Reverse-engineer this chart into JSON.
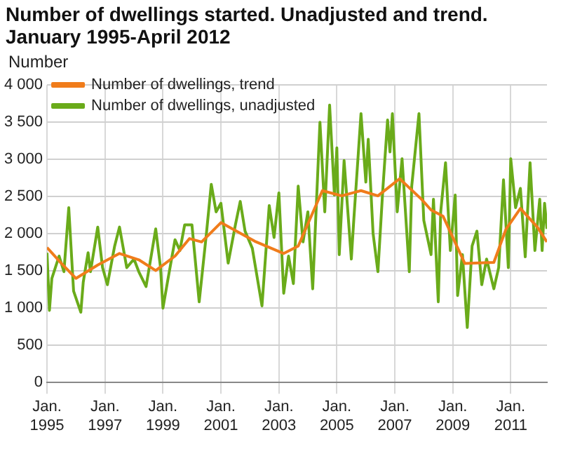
{
  "chart_data": {
    "type": "line",
    "title": "Number of dwellings started. Unadjusted and trend. January 1995-April 2012",
    "ylabel": "Number",
    "xlim": [
      "1995-01",
      "2012-04"
    ],
    "xticks": [
      {
        "value": "1995-01",
        "label": "Jan. 1995"
      },
      {
        "value": "1997-01",
        "label": "Jan. 1997"
      },
      {
        "value": "1999-01",
        "label": "Jan. 1999"
      },
      {
        "value": "2001-01",
        "label": "Jan. 2001"
      },
      {
        "value": "2003-01",
        "label": "Jan. 2003"
      },
      {
        "value": "2005-01",
        "label": "Jan. 2005"
      },
      {
        "value": "2007-01",
        "label": "Jan. 2007"
      },
      {
        "value": "2009-01",
        "label": "Jan. 2009"
      },
      {
        "value": "2011-01",
        "label": "Jan. 2011"
      }
    ],
    "ylim": [
      0,
      4000
    ],
    "yticks": [
      0,
      500,
      {
        "value": 1000,
        "label": "1 000"
      },
      {
        "value": 1500,
        "label": "1 500"
      },
      {
        "value": 2000,
        "label": "2 000"
      },
      {
        "value": 2500,
        "label": "2 500"
      },
      {
        "value": 3000,
        "label": "3 000"
      },
      {
        "value": 3500,
        "label": "3 500"
      },
      {
        "value": 4000,
        "label": "4 000"
      }
    ],
    "grid": true,
    "legend": "top left",
    "marker": "none",
    "line_style": "solid",
    "series": [
      {
        "name": "Number of dwellings, trend",
        "color": "#f07c1b",
        "x": [
          "1995-01",
          "1995-07",
          "1996-01",
          "1996-10",
          "1997-07",
          "1998-03",
          "1998-10",
          "1999-06",
          "1999-12",
          "2000-05",
          "2001-01",
          "2002-03",
          "2003-03",
          "2003-09",
          "2004-07",
          "2005-03",
          "2005-11",
          "2006-06",
          "2007-03",
          "2007-12",
          "2008-04",
          "2008-09",
          "2009-06",
          "2010-06",
          "2010-11",
          "2011-05",
          "2011-12",
          "2012-04"
        ],
        "values": [
          1815,
          1600,
          1400,
          1580,
          1735,
          1650,
          1505,
          1700,
          1935,
          1890,
          2150,
          1900,
          1735,
          1835,
          2580,
          2510,
          2580,
          2510,
          2740,
          2465,
          2320,
          2235,
          1600,
          1615,
          2060,
          2340,
          2090,
          1890
        ]
      },
      {
        "name": "Number of dwellings, unadjusted",
        "color": "#6aab1a",
        "x": [
          "1995-01",
          "1995-02",
          "1995-03",
          "1995-06",
          "1995-08",
          "1995-10",
          "1995-12",
          "1996-03",
          "1996-04",
          "1996-06",
          "1996-07",
          "1996-10",
          "1996-12",
          "1997-02",
          "1997-05",
          "1997-07",
          "1997-10",
          "1998-01",
          "1998-03",
          "1998-06",
          "1998-10",
          "1998-12",
          "1999-01",
          "1999-03",
          "1999-06",
          "1999-08",
          "1999-10",
          "2000-01",
          "2000-04",
          "2000-07",
          "2000-09",
          "2000-11",
          "2001-01",
          "2001-04",
          "2001-07",
          "2001-09",
          "2001-11",
          "2002-02",
          "2002-06",
          "2002-09",
          "2002-11",
          "2003-01",
          "2003-03",
          "2003-05",
          "2003-07",
          "2003-09",
          "2003-11",
          "2004-01",
          "2004-03",
          "2004-06",
          "2004-08",
          "2004-10",
          "2004-12",
          "2005-01",
          "2005-02",
          "2005-04",
          "2005-07",
          "2005-08",
          "2005-11",
          "2006-01",
          "2006-02",
          "2006-04",
          "2006-06",
          "2006-08",
          "2006-10",
          "2006-11",
          "2006-12",
          "2007-02",
          "2007-04",
          "2007-07",
          "2007-08",
          "2007-11",
          "2008-01",
          "2008-04",
          "2008-05",
          "2008-07",
          "2008-08",
          "2008-10",
          "2008-12",
          "2009-02",
          "2009-03",
          "2009-05",
          "2009-07",
          "2009-09",
          "2009-11",
          "2010-01",
          "2010-03",
          "2010-06",
          "2010-08",
          "2010-10",
          "2010-12",
          "2011-01",
          "2011-03",
          "2011-05",
          "2011-07",
          "2011-09",
          "2011-11",
          "2012-01",
          "2012-02",
          "2012-03",
          "2012-04"
        ],
        "values": [
          1745,
          970,
          1400,
          1700,
          1490,
          2350,
          1230,
          945,
          1350,
          1745,
          1490,
          2090,
          1545,
          1315,
          1835,
          2090,
          1545,
          1660,
          1490,
          1290,
          2065,
          1545,
          1000,
          1375,
          1920,
          1775,
          2120,
          2120,
          1085,
          2005,
          2665,
          2295,
          2410,
          1605,
          2120,
          2435,
          2035,
          1805,
          1030,
          2380,
          1950,
          2550,
          1200,
          1700,
          1330,
          2640,
          1890,
          2295,
          1260,
          3500,
          2295,
          3730,
          2520,
          3155,
          1720,
          2985,
          1660,
          2180,
          3615,
          2695,
          3270,
          2005,
          1490,
          2580,
          3530,
          3100,
          3615,
          2295,
          3010,
          1490,
          2640,
          3615,
          2180,
          1720,
          2465,
          1085,
          2295,
          2955,
          1775,
          2520,
          1170,
          1720,
          740,
          1835,
          2035,
          1315,
          1660,
          1260,
          1545,
          2725,
          1545,
          3010,
          2350,
          2610,
          1690,
          2955,
          1775,
          2465,
          1775,
          2410,
          2065
        ]
      }
    ]
  }
}
